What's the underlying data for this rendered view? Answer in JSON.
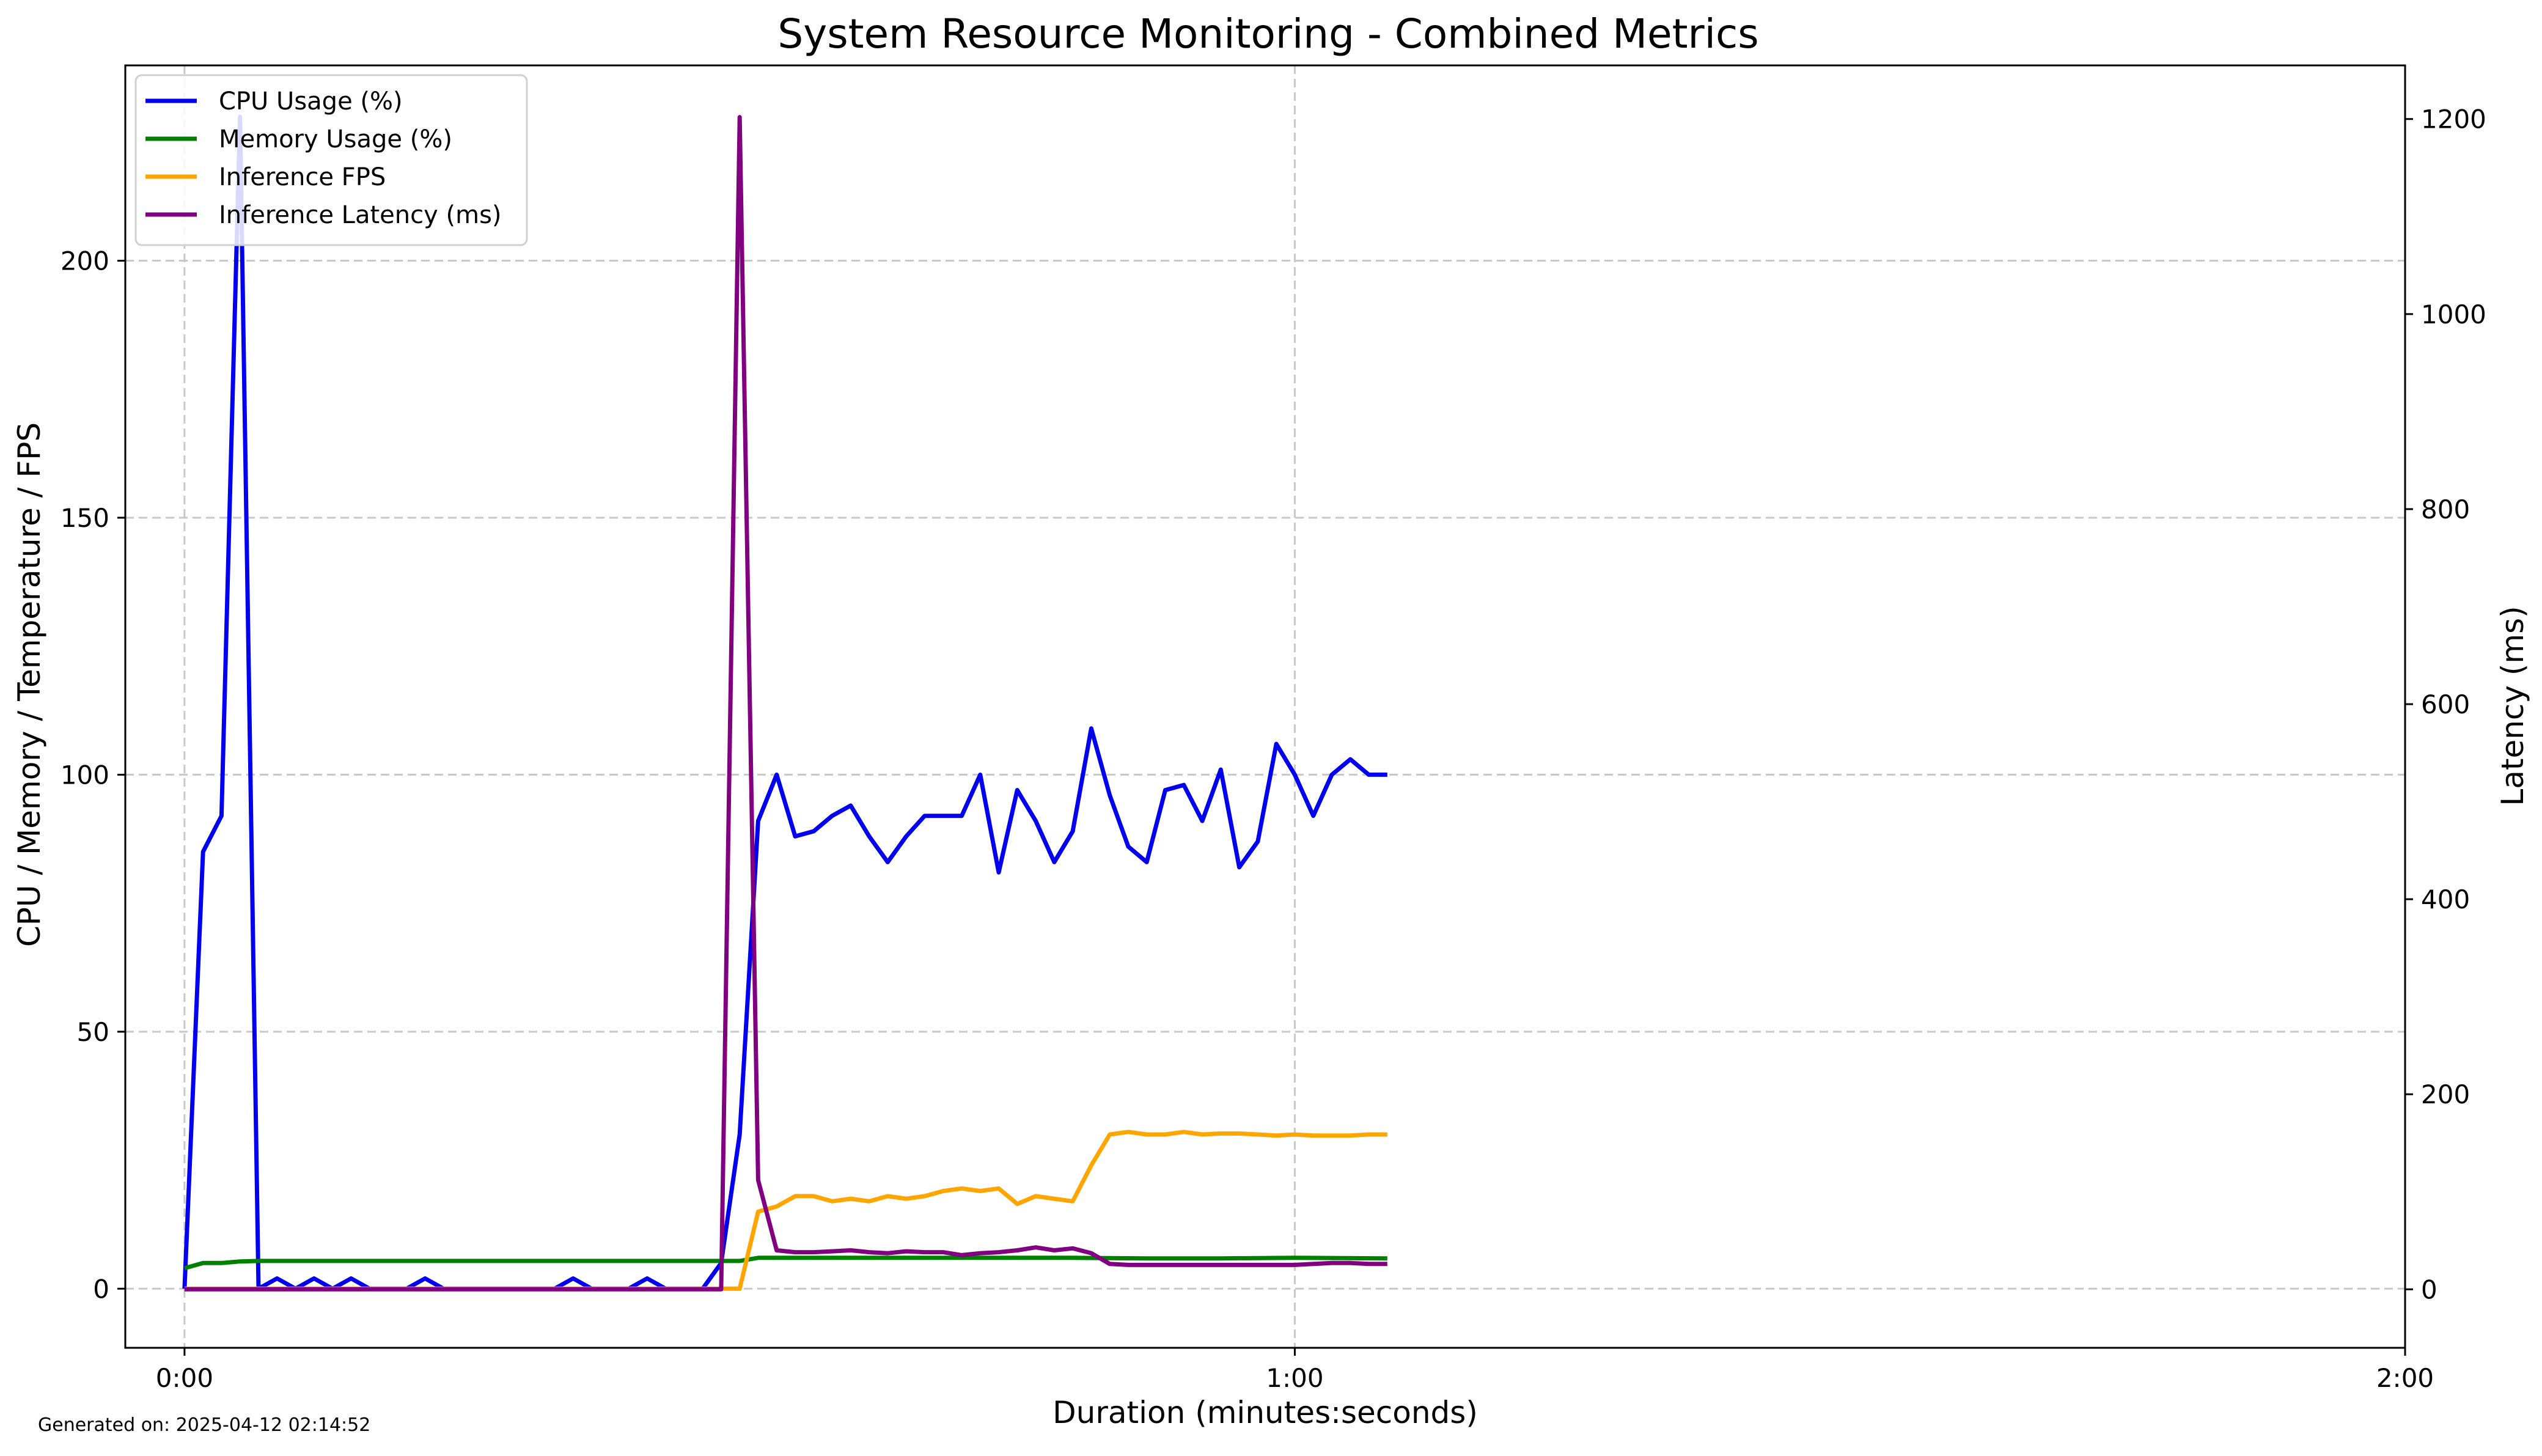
{
  "chart_data": {
    "type": "line",
    "title": "System Resource Monitoring - Combined Metrics",
    "xlabel": "Duration (minutes:seconds)",
    "ylabel": "CPU / Memory / Temperature / FPS",
    "y2label": "Latency (ms)",
    "xlim": [
      -3.2,
      120
    ],
    "ylim": [
      -11.5,
      238
    ],
    "y2lim": [
      -60,
      1255
    ],
    "xticks": [
      {
        "value": 0,
        "label": "0:00"
      },
      {
        "value": 60,
        "label": "1:00"
      },
      {
        "value": 120,
        "label": "2:00"
      }
    ],
    "yticks": [
      0,
      50,
      100,
      150,
      200
    ],
    "y2ticks": [
      0,
      200,
      400,
      600,
      800,
      1000,
      1200
    ],
    "grid": true,
    "legend_position": "top-left",
    "series": [
      {
        "name": "CPU Usage (%)",
        "axis": "left",
        "color": "#0000ee",
        "x": [
          0,
          1,
          2,
          3,
          4,
          5,
          6,
          7,
          8,
          9,
          10,
          11,
          12,
          13,
          14,
          15,
          16,
          17,
          18,
          19,
          20,
          21,
          22,
          23,
          24,
          25,
          26,
          27,
          28,
          29,
          30,
          31,
          32,
          33,
          34,
          35,
          36,
          37,
          38,
          39,
          40,
          41,
          42,
          43,
          44,
          45,
          46,
          47,
          48,
          49,
          50,
          51,
          52,
          53,
          54,
          55,
          56,
          57,
          58,
          59,
          60,
          61,
          62,
          63,
          64,
          65
        ],
        "y": [
          0,
          85,
          92,
          228,
          0,
          2,
          0,
          2,
          0,
          2,
          0,
          0,
          0,
          2,
          0,
          0,
          0,
          0,
          0,
          0,
          0,
          2,
          0,
          0,
          0,
          2,
          0,
          0,
          0,
          5,
          30,
          91,
          100,
          88,
          89,
          92,
          94,
          88,
          83,
          88,
          92,
          92,
          92,
          100,
          81,
          97,
          91,
          83,
          89,
          109,
          96,
          86,
          83,
          97,
          98,
          91,
          101,
          82,
          87,
          106,
          100,
          92,
          100,
          103,
          100,
          100
        ]
      },
      {
        "name": "Memory Usage (%)",
        "axis": "left",
        "color": "#008000",
        "x": [
          0,
          1,
          2,
          3,
          4,
          30,
          31,
          32,
          36,
          40,
          44,
          48,
          52,
          56,
          60,
          65
        ],
        "y": [
          4,
          5,
          5,
          5.3,
          5.4,
          5.4,
          6,
          6,
          6,
          6,
          6,
          6,
          5.9,
          5.9,
          6,
          5.9
        ]
      },
      {
        "name": "Inference FPS",
        "axis": "left",
        "color": "#ffa500",
        "x": [
          0,
          29,
          30,
          31,
          32,
          33,
          34,
          35,
          36,
          37,
          38,
          39,
          40,
          41,
          42,
          43,
          44,
          45,
          46,
          47,
          48,
          49,
          50,
          51,
          52,
          53,
          54,
          55,
          56,
          57,
          58,
          59,
          60,
          61,
          62,
          63,
          64,
          65
        ],
        "y": [
          0,
          0,
          0,
          15,
          16,
          18,
          18,
          17,
          17.5,
          17,
          18,
          17.5,
          18,
          19,
          19.5,
          19,
          19.5,
          16.5,
          18,
          17.5,
          17,
          24,
          30,
          30.5,
          30,
          30,
          30.5,
          30,
          30.2,
          30.2,
          30,
          29.8,
          30,
          29.8,
          29.8,
          29.8,
          30,
          30
        ]
      },
      {
        "name": "Inference Latency (ms)",
        "axis": "right",
        "color": "#800080",
        "x": [
          0,
          29,
          30,
          31,
          32,
          33,
          34,
          35,
          36,
          37,
          38,
          39,
          40,
          41,
          42,
          43,
          44,
          45,
          46,
          47,
          48,
          49,
          50,
          51,
          52,
          53,
          54,
          55,
          56,
          57,
          58,
          59,
          60,
          61,
          62,
          63,
          64,
          65
        ],
        "y": [
          0,
          0,
          1202,
          112,
          40,
          38,
          38,
          39,
          40,
          38,
          37,
          39,
          38,
          38,
          35,
          37,
          38,
          40,
          43,
          40,
          42,
          37,
          26,
          25,
          25,
          25,
          25,
          25,
          25,
          25,
          25,
          25,
          25,
          26,
          27,
          27,
          26,
          26
        ]
      }
    ],
    "footer": "Generated on: 2025-04-12 02:14:52"
  }
}
